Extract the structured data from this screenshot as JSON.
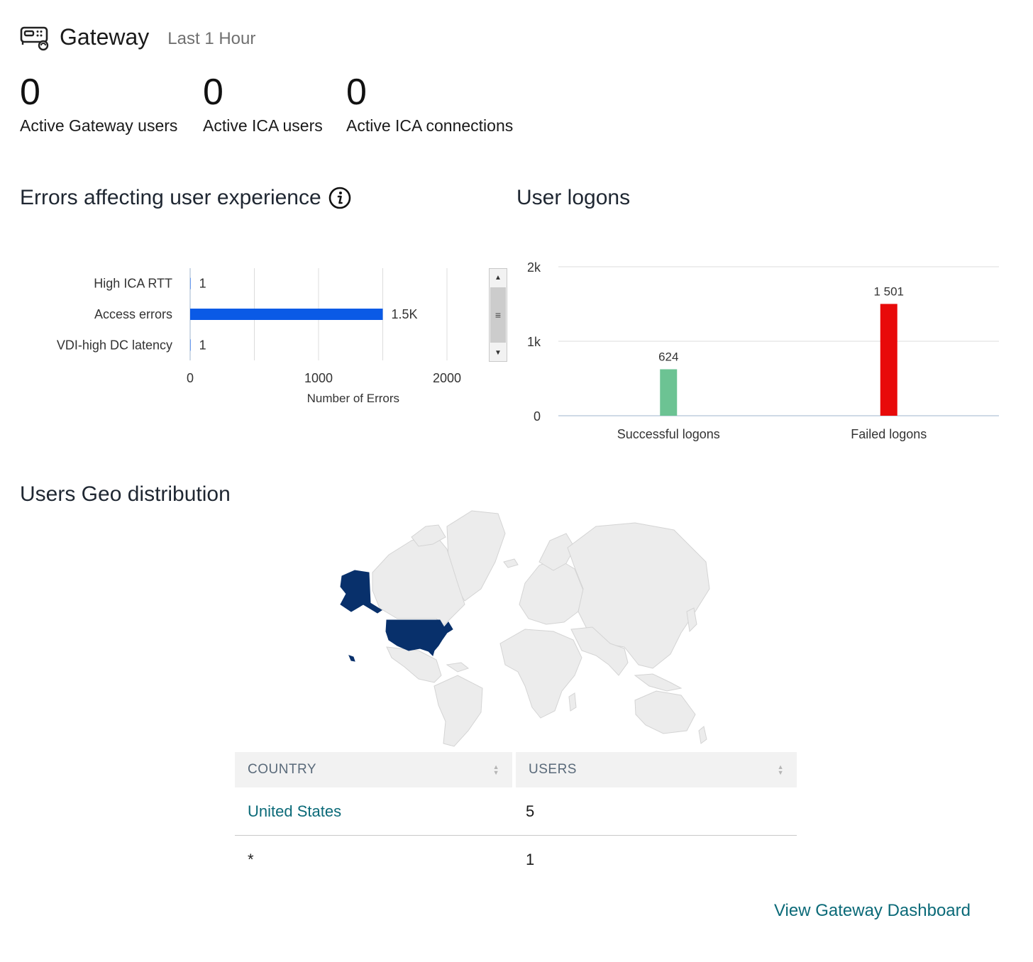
{
  "header": {
    "icon": "gateway-icon",
    "title": "Gateway",
    "time_range": "Last 1 Hour"
  },
  "stats": [
    {
      "value": "0",
      "label": "Active Gateway users"
    },
    {
      "value": "0",
      "label": "Active ICA users"
    },
    {
      "value": "0",
      "label": "Active ICA connections"
    }
  ],
  "errors_section": {
    "title": "Errors affecting user experience",
    "info_icon": "info-icon"
  },
  "logons_section": {
    "title": "User logons"
  },
  "geo_section": {
    "title": "Users Geo distribution",
    "map_highlight_color": "#08306b",
    "map_base_color": "#ececec",
    "table": {
      "headers": {
        "country": "COUNTRY",
        "users": "USERS"
      },
      "rows": [
        {
          "country": "United States",
          "users": "5"
        },
        {
          "country": "*",
          "users": "1"
        }
      ]
    }
  },
  "footer": {
    "link": "View Gateway Dashboard"
  },
  "chart_data": [
    {
      "type": "bar",
      "orientation": "horizontal",
      "categories": [
        "High ICA RTT",
        "Access errors",
        "VDI-high DC latency"
      ],
      "values": [
        1,
        1500,
        1
      ],
      "data_labels": [
        "1",
        "1.5K",
        "1"
      ],
      "xlabel": "Number of Errors",
      "xlim": [
        0,
        2000
      ],
      "xticks": [
        "0",
        "1000",
        "2000"
      ],
      "grid": true,
      "color": "#0a5ae6"
    },
    {
      "type": "bar",
      "categories": [
        "Successful logons",
        "Failed logons"
      ],
      "values": [
        624,
        1501
      ],
      "data_labels": [
        "624",
        "1 501"
      ],
      "colors": [
        "#6cc393",
        "#e80a0a"
      ],
      "ylim": [
        0,
        2000
      ],
      "yticks": [
        "0",
        "1k",
        "2k"
      ],
      "grid": true
    }
  ]
}
